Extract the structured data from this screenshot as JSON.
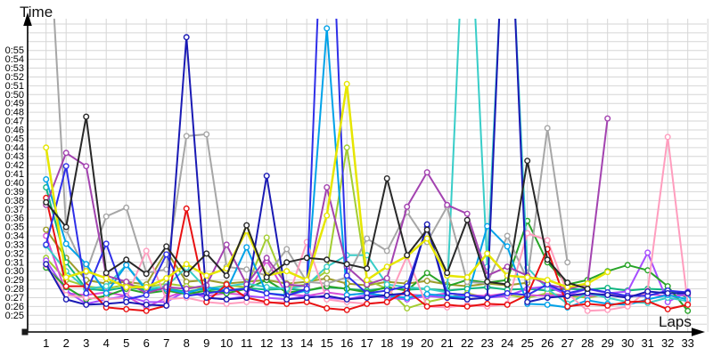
{
  "axes": {
    "y_title": "Time",
    "x_title": "Laps",
    "y_tick_labels": [
      "0:25",
      "0:26",
      "0:27",
      "0:28",
      "0:29",
      "0:30",
      "0:31",
      "0:32",
      "0:33",
      "0:34",
      "0:35",
      "0:36",
      "0:37",
      "0:38",
      "0:39",
      "0:40",
      "0:41",
      "0:42",
      "0:43",
      "0:44",
      "0:45",
      "0:46",
      "0:47",
      "0:48",
      "0:49",
      "0:50",
      "0:51",
      "0:52",
      "0:53",
      "0:54",
      "0:55"
    ],
    "x_tick_labels": [
      "1",
      "2",
      "3",
      "4",
      "5",
      "6",
      "7",
      "8",
      "9",
      "10",
      "11",
      "12",
      "13",
      "14",
      "15",
      "16",
      "17",
      "18",
      "19",
      "20",
      "21",
      "22",
      "23",
      "24",
      "25",
      "26",
      "27",
      "28",
      "29",
      "30",
      "31",
      "32",
      "33"
    ],
    "axis_color": "#000000",
    "grid_color": "#d6d6d6",
    "background": "#ffffff"
  },
  "chart_data": {
    "type": "line",
    "title": "",
    "xlabel": "Laps",
    "ylabel": "Time",
    "x_range": [
      1,
      33
    ],
    "y_axis": {
      "min_seconds": 25,
      "max_seconds": 55,
      "tick_step_seconds": 1,
      "format": "0:SS"
    },
    "grid": true,
    "legend": "none",
    "marker": "open-circle",
    "x": [
      1,
      2,
      3,
      4,
      5,
      6,
      7,
      8,
      9,
      10,
      11,
      12,
      13,
      14,
      15,
      16,
      17,
      18,
      19,
      20,
      21,
      22,
      23,
      24,
      25,
      26,
      27,
      28,
      29,
      30,
      31,
      32,
      33
    ],
    "series": [
      {
        "name": "olive",
        "color": "#9c9c2a",
        "values": [
          34.7,
          31.5,
          29,
          28.6,
          28.8,
          28.5,
          32.3,
          28.8,
          29,
          28.6,
          28.8,
          29,
          28.6,
          28.8,
          29.2,
          28.6,
          28.4,
          28.8,
          28.6,
          28.9,
          28.5,
          28.3,
          28.6,
          28.4,
          28.7,
          null,
          null,
          null,
          null,
          null,
          null,
          null,
          null
        ]
      },
      {
        "name": "teal",
        "color": "#10b581",
        "values": [
          39.5,
          31,
          28,
          27.8,
          28.2,
          27.9,
          28,
          27.7,
          28,
          27.8,
          28.1,
          27.9,
          28,
          27.8,
          28.2,
          28,
          27.8,
          28.1,
          27.9,
          28,
          27.8,
          28,
          28.2,
          27.9,
          28,
          27.8,
          28,
          27.9,
          28.1,
          27.8,
          28,
          27.9,
          27
        ]
      },
      {
        "name": "yellowgreen",
        "color": "#a3cd32",
        "values": [
          31.5,
          29,
          28.3,
          28,
          28.5,
          28.2,
          28.6,
          28.3,
          28,
          28.4,
          28.2,
          33.8,
          28.2,
          28.5,
          30,
          44,
          29,
          28,
          25.8,
          26.5,
          27,
          27.5,
          27,
          27.3,
          27,
          27.5,
          27.2,
          27,
          27.4,
          27.1,
          null,
          null,
          null
        ]
      },
      {
        "name": "magenta",
        "color": "#d64fd6",
        "values": [
          34,
          27.5,
          27.3,
          27.6,
          27.2,
          25.9,
          27,
          27.8,
          27.2,
          27.5,
          27.3,
          31.2,
          27.4,
          27.2,
          27.6,
          27.3,
          27.5,
          27.2,
          27.4,
          27.2,
          27.5,
          27.3,
          27.2,
          27.5,
          27.3,
          27.2,
          27.4,
          27.2,
          27.3,
          27.2,
          27.4,
          27.2,
          27.3
        ]
      },
      {
        "name": "violet",
        "color": "#a64dff",
        "values": [
          31.2,
          27.8,
          26.3,
          26.8,
          27.2,
          26.5,
          26.5,
          27.8,
          27,
          26.8,
          27.2,
          27,
          26.8,
          27.2,
          27,
          26.8,
          27.3,
          27,
          26.8,
          27.2,
          27,
          27.3,
          27,
          27.2,
          28,
          28.3,
          27.3,
          28,
          27.5,
          27.7,
          32.1,
          26.5,
          27.7
        ]
      },
      {
        "name": "green",
        "color": "#28a428",
        "values": [
          30.4,
          28.2,
          26.8,
          27.2,
          28,
          27.5,
          27.8,
          27.4,
          27.8,
          27.5,
          28,
          29,
          27.6,
          27.8,
          28.3,
          28,
          27.6,
          28.2,
          27.8,
          29.8,
          28.3,
          29,
          28.7,
          29,
          35.7,
          31,
          28.5,
          29,
          30,
          30.7,
          30.1,
          28.3,
          25.5
        ]
      },
      {
        "name": "turquoise",
        "color": "#38cdc8",
        "values": [
          32.9,
          30,
          28,
          28.3,
          30.7,
          28,
          28.3,
          30.4,
          28,
          28.3,
          28.6,
          28.2,
          28,
          28.4,
          30.5,
          31.8,
          31.8,
          28.5,
          28.2,
          28,
          27.6,
          78,
          30.5,
          78,
          30.4,
          28,
          26.3,
          27.5,
          27,
          26.5,
          26.4,
          27,
          26.6
        ]
      },
      {
        "name": "gray",
        "color": "#a6a6a6",
        "values": [
          75,
          34.7,
          29.9,
          36.2,
          37.2,
          29.8,
          30.2,
          45.3,
          45.5,
          30.5,
          30.2,
          29.5,
          32.5,
          28.8,
          28.6,
          29.3,
          33.7,
          32.3,
          36.7,
          33.3,
          37.3,
          28.8,
          28.6,
          34,
          29,
          46.2,
          31,
          null,
          null,
          null,
          null,
          null,
          null
        ]
      },
      {
        "name": "deepsky",
        "color": "#00a2e8",
        "values": [
          40.4,
          33.1,
          30.8,
          27.5,
          30.7,
          27.8,
          28,
          27.5,
          28.2,
          27.8,
          32.7,
          27.5,
          27.3,
          27.8,
          57.5,
          27.3,
          27.5,
          27.2,
          27,
          27.4,
          27.2,
          27,
          35.1,
          32.8,
          26.3,
          26.2,
          25.9,
          26.7,
          26.3,
          26.2,
          26.8,
          27.3,
          26.8
        ]
      },
      {
        "name": "pink",
        "color": "#ff9dbe",
        "values": [
          30.7,
          27.3,
          27,
          26.8,
          27,
          32.3,
          26.8,
          27,
          26.5,
          26.3,
          26.5,
          26.4,
          26.5,
          33.3,
          26.8,
          26.5,
          26.3,
          26.5,
          31.7,
          26,
          25.9,
          26.2,
          26,
          26.3,
          34.3,
          33.5,
          27.5,
          25.5,
          25.6,
          26,
          27.8,
          45.2,
          26.3
        ]
      },
      {
        "name": "red",
        "color": "#e81112",
        "values": [
          38.3,
          28.3,
          28.3,
          25.9,
          25.7,
          25.5,
          26.1,
          37.1,
          26.5,
          28.5,
          27,
          26.5,
          26.3,
          26.5,
          25.8,
          25.6,
          26.3,
          26.5,
          27.8,
          26,
          26.2,
          26,
          26.3,
          26.2,
          27.3,
          32.5,
          26,
          26.3,
          26.1,
          26.5,
          26.6,
          25.7,
          26.2
        ]
      },
      {
        "name": "purple",
        "color": "#a343b0",
        "values": [
          37.5,
          43.4,
          41.9,
          29.5,
          28.8,
          27.5,
          28.2,
          28,
          28.4,
          33,
          28.5,
          31.5,
          28.5,
          28.3,
          39.5,
          30.5,
          28.5,
          29.2,
          37.3,
          41.2,
          37.5,
          36.5,
          29.5,
          30.5,
          29.5,
          28.5,
          28,
          28.5,
          47.3,
          null,
          null,
          null,
          null
        ]
      },
      {
        "name": "blue",
        "color": "#2f2fe8",
        "values": [
          33,
          41.9,
          27.5,
          33.1,
          26.8,
          27.3,
          31.9,
          27.2,
          27.5,
          27.8,
          28,
          27.5,
          27.2,
          28,
          85,
          29.5,
          27.5,
          27.8,
          28.3,
          35,
          27.5,
          27.3,
          27,
          27.5,
          27.3,
          28.5,
          27.5,
          28,
          27.6,
          27.2,
          27.2,
          27.8,
          27.6
        ]
      },
      {
        "name": "navy",
        "color": "#1a1ab4",
        "values": [
          30.8,
          26.8,
          26.2,
          26.3,
          26.5,
          26.2,
          26.1,
          56.5,
          27,
          26.8,
          27,
          40.8,
          26.8,
          27,
          27.2,
          26.8,
          27,
          27.3,
          27.5,
          35.3,
          27,
          26.8,
          27,
          80,
          26.5,
          27,
          27.2,
          27.5,
          27.3,
          27,
          27.7,
          27.5,
          27.5
        ]
      },
      {
        "name": "yellow",
        "color": "#e6e600",
        "values": [
          44,
          29.3,
          30,
          29.2,
          28.2,
          28.2,
          29.2,
          30.8,
          29.5,
          30.3,
          34.6,
          29.5,
          30,
          29,
          36.3,
          51.2,
          29,
          30.5,
          31.7,
          33.7,
          29.5,
          29.3,
          32,
          29.5,
          29.3,
          29,
          28.2,
          28.6,
          29.9,
          null,
          null,
          null,
          null
        ]
      },
      {
        "name": "black",
        "color": "#282828",
        "values": [
          37.8,
          35,
          47.5,
          29.8,
          31.3,
          29.7,
          32.8,
          29.7,
          32,
          29.5,
          35.2,
          29.3,
          31,
          31.5,
          31.3,
          30.8,
          30.3,
          40.5,
          31.8,
          34.7,
          29.8,
          35.8,
          28.8,
          28.5,
          42.5,
          31.3,
          28.7,
          28,
          null,
          null,
          null,
          null,
          null
        ]
      }
    ]
  }
}
